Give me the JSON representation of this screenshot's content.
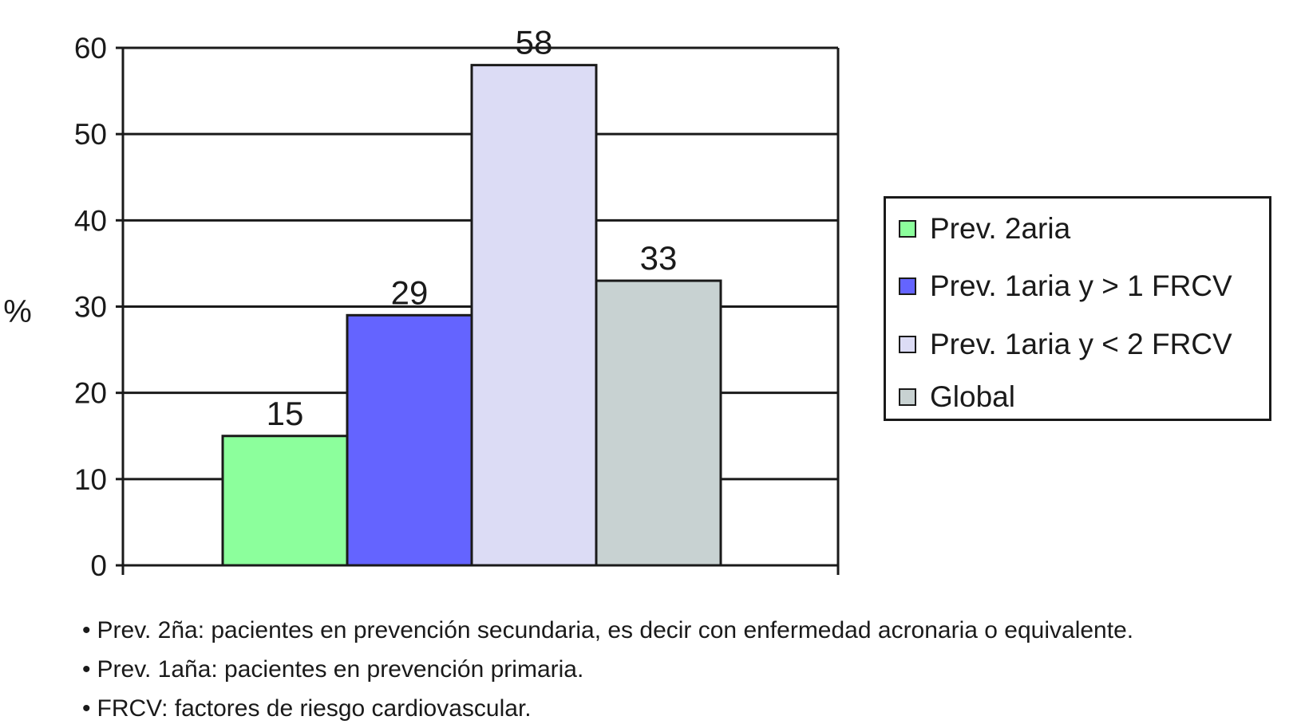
{
  "chart_data": {
    "type": "bar",
    "categories": [
      "Prev. 2aria",
      "Prev. 1aria y > 1 FRCV",
      "Prev. 1aria y < 2 FRCV",
      "Global"
    ],
    "values": [
      15,
      29,
      58,
      33
    ],
    "colors": [
      "#8cff9c",
      "#6464ff",
      "#dcdcf5",
      "#c8d2d2"
    ],
    "title": "",
    "xlabel": "",
    "ylabel": "%",
    "ylim": [
      0,
      60
    ],
    "yticks": [
      0,
      10,
      20,
      30,
      40,
      50,
      60
    ],
    "grid": true,
    "legend_position": "right",
    "data_labels": [
      "15",
      "29",
      "58",
      "33"
    ]
  },
  "legend": {
    "items": [
      {
        "label": "Prev. 2aria",
        "color": "#8cff9c"
      },
      {
        "label": "Prev. 1aria y > 1 FRCV",
        "color": "#6464ff"
      },
      {
        "label": "Prev. 1aria y < 2 FRCV",
        "color": "#dcdcf5"
      },
      {
        "label": "Global",
        "color": "#c8d2d2"
      }
    ]
  },
  "notes": [
    "Prev. 2ña: pacientes en prevención secundaria, es decir con enfermedad acronaria o equivalente.",
    "Prev. 1aña: pacientes en prevención primaria.",
    "FRCV: factores de riesgo cardiovascular."
  ]
}
